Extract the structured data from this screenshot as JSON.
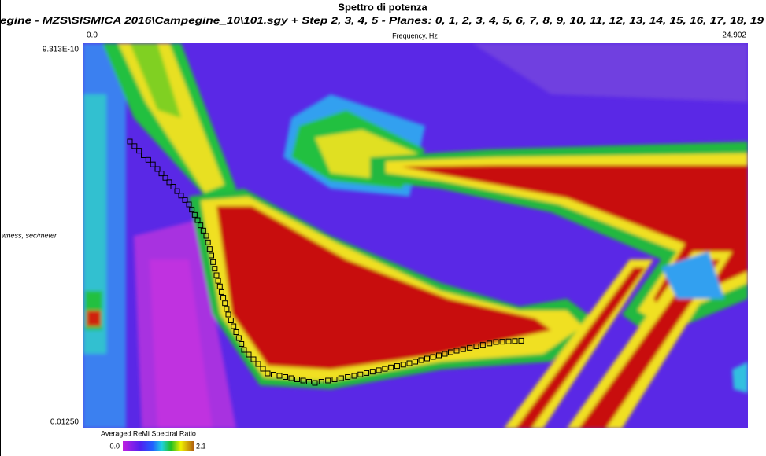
{
  "window": {
    "title": "Spettro di potenza",
    "subtitle": "egine - MZS\\SISMICA 2016\\Campegine_10\\101.sgy + Step 2, 3, 4, 5 - Planes: 0, 1, 2, 3, 4, 5, 6, 7, 8, 9, 10, 11, 12, 13, 14, 15, 16, 17, 18, 19"
  },
  "plot": {
    "x_axis": {
      "min_label": "0.0",
      "label": "Frequency, Hz",
      "max_label": "24.902"
    },
    "y_axis": {
      "max_label": "9.313E-10",
      "label": "wness, sec/meter",
      "min_label": "0.01250"
    }
  },
  "colorbar": {
    "title": "Averaged ReMi Spectral Ratio",
    "min_label": "0.0",
    "max_label": "2.1"
  }
}
